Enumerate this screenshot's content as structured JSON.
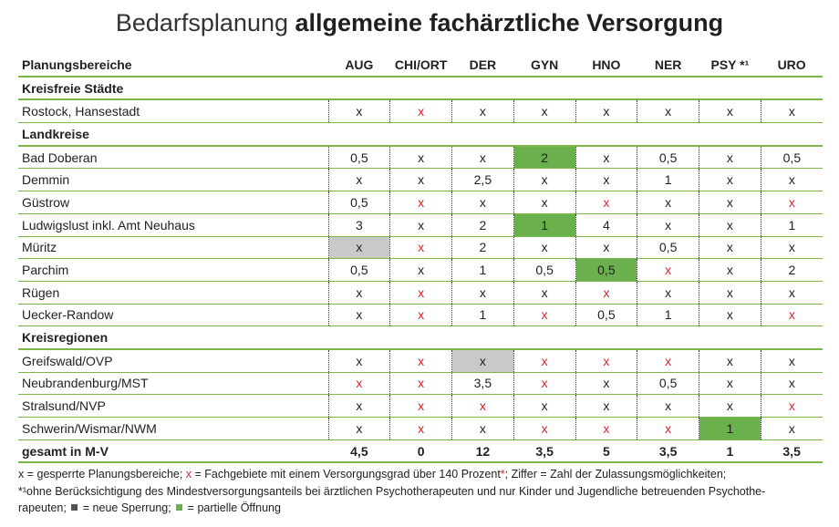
{
  "title": {
    "normal": "Bedarfsplanung ",
    "bold": "allgemeine fachärztliche Versorgung"
  },
  "colors": {
    "green_line": "#7ab648",
    "green_fill": "#6ab04c",
    "gray_fill": "#c9c9c9",
    "red_mark": "#d7262e"
  },
  "table": {
    "headers": [
      "Planungsbereiche",
      "AUG",
      "CHI/ORT",
      "DER",
      "GYN",
      "HNO",
      "NER",
      "PSY *¹",
      "URO"
    ],
    "sections": [
      {
        "title": "Kreisfreie Städte",
        "rows": [
          {
            "name": "Rostock, Hansestadt",
            "cells": [
              {
                "v": "x",
                "s": ""
              },
              {
                "v": "x",
                "s": "red"
              },
              {
                "v": "x",
                "s": ""
              },
              {
                "v": "x",
                "s": ""
              },
              {
                "v": "x",
                "s": ""
              },
              {
                "v": "x",
                "s": ""
              },
              {
                "v": "x",
                "s": ""
              },
              {
                "v": "x",
                "s": ""
              }
            ]
          }
        ]
      },
      {
        "title": "Landkreise",
        "rows": [
          {
            "name": "Bad Doberan",
            "cells": [
              {
                "v": "0,5",
                "s": ""
              },
              {
                "v": "x",
                "s": ""
              },
              {
                "v": "x",
                "s": ""
              },
              {
                "v": "2",
                "s": "green"
              },
              {
                "v": "x",
                "s": ""
              },
              {
                "v": "0,5",
                "s": ""
              },
              {
                "v": "x",
                "s": ""
              },
              {
                "v": "0,5",
                "s": ""
              }
            ]
          },
          {
            "name": "Demmin",
            "cells": [
              {
                "v": "x",
                "s": ""
              },
              {
                "v": "x",
                "s": ""
              },
              {
                "v": "2,5",
                "s": ""
              },
              {
                "v": "x",
                "s": ""
              },
              {
                "v": "x",
                "s": ""
              },
              {
                "v": "1",
                "s": ""
              },
              {
                "v": "x",
                "s": ""
              },
              {
                "v": "x",
                "s": ""
              }
            ]
          },
          {
            "name": "Güstrow",
            "cells": [
              {
                "v": "0,5",
                "s": ""
              },
              {
                "v": "x",
                "s": "red"
              },
              {
                "v": "x",
                "s": ""
              },
              {
                "v": "x",
                "s": ""
              },
              {
                "v": "x",
                "s": "red"
              },
              {
                "v": "x",
                "s": ""
              },
              {
                "v": "x",
                "s": ""
              },
              {
                "v": "x",
                "s": "red"
              }
            ]
          },
          {
            "name": "Ludwigslust inkl. Amt Neuhaus",
            "cells": [
              {
                "v": "3",
                "s": ""
              },
              {
                "v": "x",
                "s": ""
              },
              {
                "v": "2",
                "s": ""
              },
              {
                "v": "1",
                "s": "green"
              },
              {
                "v": "4",
                "s": ""
              },
              {
                "v": "x",
                "s": ""
              },
              {
                "v": "x",
                "s": ""
              },
              {
                "v": "1",
                "s": ""
              }
            ]
          },
          {
            "name": "Müritz",
            "cells": [
              {
                "v": "x",
                "s": "gray"
              },
              {
                "v": "x",
                "s": "red"
              },
              {
                "v": "2",
                "s": ""
              },
              {
                "v": "x",
                "s": ""
              },
              {
                "v": "x",
                "s": ""
              },
              {
                "v": "0,5",
                "s": ""
              },
              {
                "v": "x",
                "s": ""
              },
              {
                "v": "x",
                "s": ""
              }
            ]
          },
          {
            "name": "Parchim",
            "cells": [
              {
                "v": "0,5",
                "s": ""
              },
              {
                "v": "x",
                "s": ""
              },
              {
                "v": "1",
                "s": ""
              },
              {
                "v": "0,5",
                "s": ""
              },
              {
                "v": "0,5",
                "s": "green"
              },
              {
                "v": "x",
                "s": "red"
              },
              {
                "v": "x",
                "s": ""
              },
              {
                "v": "2",
                "s": ""
              }
            ]
          },
          {
            "name": "Rügen",
            "cells": [
              {
                "v": "x",
                "s": ""
              },
              {
                "v": "x",
                "s": "red"
              },
              {
                "v": "x",
                "s": ""
              },
              {
                "v": "x",
                "s": ""
              },
              {
                "v": "x",
                "s": "red"
              },
              {
                "v": "x",
                "s": ""
              },
              {
                "v": "x",
                "s": ""
              },
              {
                "v": "x",
                "s": ""
              }
            ]
          },
          {
            "name": "Uecker-Randow",
            "cells": [
              {
                "v": "x",
                "s": ""
              },
              {
                "v": "x",
                "s": "red"
              },
              {
                "v": "1",
                "s": ""
              },
              {
                "v": "x",
                "s": "red"
              },
              {
                "v": "0,5",
                "s": ""
              },
              {
                "v": "1",
                "s": ""
              },
              {
                "v": "x",
                "s": ""
              },
              {
                "v": "x",
                "s": "red"
              }
            ]
          }
        ]
      },
      {
        "title": "Kreisregionen",
        "rows": [
          {
            "name": "Greifswald/OVP",
            "cells": [
              {
                "v": "x",
                "s": ""
              },
              {
                "v": "x",
                "s": "red"
              },
              {
                "v": "x",
                "s": "gray"
              },
              {
                "v": "x",
                "s": "red"
              },
              {
                "v": "x",
                "s": "red"
              },
              {
                "v": "x",
                "s": "red"
              },
              {
                "v": "x",
                "s": ""
              },
              {
                "v": "x",
                "s": ""
              }
            ]
          },
          {
            "name": "Neubrandenburg/MST",
            "cells": [
              {
                "v": "x",
                "s": "red"
              },
              {
                "v": "x",
                "s": "red"
              },
              {
                "v": "3,5",
                "s": ""
              },
              {
                "v": "x",
                "s": "red"
              },
              {
                "v": "x",
                "s": ""
              },
              {
                "v": "0,5",
                "s": ""
              },
              {
                "v": "x",
                "s": ""
              },
              {
                "v": "x",
                "s": ""
              }
            ]
          },
          {
            "name": "Stralsund/NVP",
            "cells": [
              {
                "v": "x",
                "s": ""
              },
              {
                "v": "x",
                "s": "red"
              },
              {
                "v": "x",
                "s": "red"
              },
              {
                "v": "x",
                "s": ""
              },
              {
                "v": "x",
                "s": ""
              },
              {
                "v": "x",
                "s": ""
              },
              {
                "v": "x",
                "s": ""
              },
              {
                "v": "x",
                "s": "red"
              }
            ]
          },
          {
            "name": "Schwerin/Wismar/NWM",
            "cells": [
              {
                "v": "x",
                "s": ""
              },
              {
                "v": "x",
                "s": "red"
              },
              {
                "v": "x",
                "s": ""
              },
              {
                "v": "x",
                "s": "red"
              },
              {
                "v": "x",
                "s": "red"
              },
              {
                "v": "x",
                "s": "red"
              },
              {
                "v": "1",
                "s": "green"
              },
              {
                "v": "x",
                "s": ""
              }
            ]
          }
        ]
      }
    ],
    "total": {
      "name": "gesamt in M-V",
      "values": [
        "4,5",
        "0",
        "12",
        "3,5",
        "5",
        "3,5",
        "1",
        "3,5"
      ]
    }
  },
  "footnote": {
    "part1": "x = gesperrte Planungsbereiche; ",
    "red_x": "x",
    "part2": " = Fachgebiete mit einem Versorgungsgrad über 140 Prozent",
    "star": "*",
    "part3": "; Ziffer = Zahl der Zulassungsmöglichkeiten;",
    "part4": "*¹ohne Berücksichtigung des Mindestversorgungsanteils bei ärztlichen Psychotherapeuten und nur Kinder und Jugendliche betreuenden Psychothe-",
    "part5": "rapeuten; ",
    "gray_legend": " = neue Sperrung; ",
    "green_legend": " = partielle Öffnung"
  }
}
